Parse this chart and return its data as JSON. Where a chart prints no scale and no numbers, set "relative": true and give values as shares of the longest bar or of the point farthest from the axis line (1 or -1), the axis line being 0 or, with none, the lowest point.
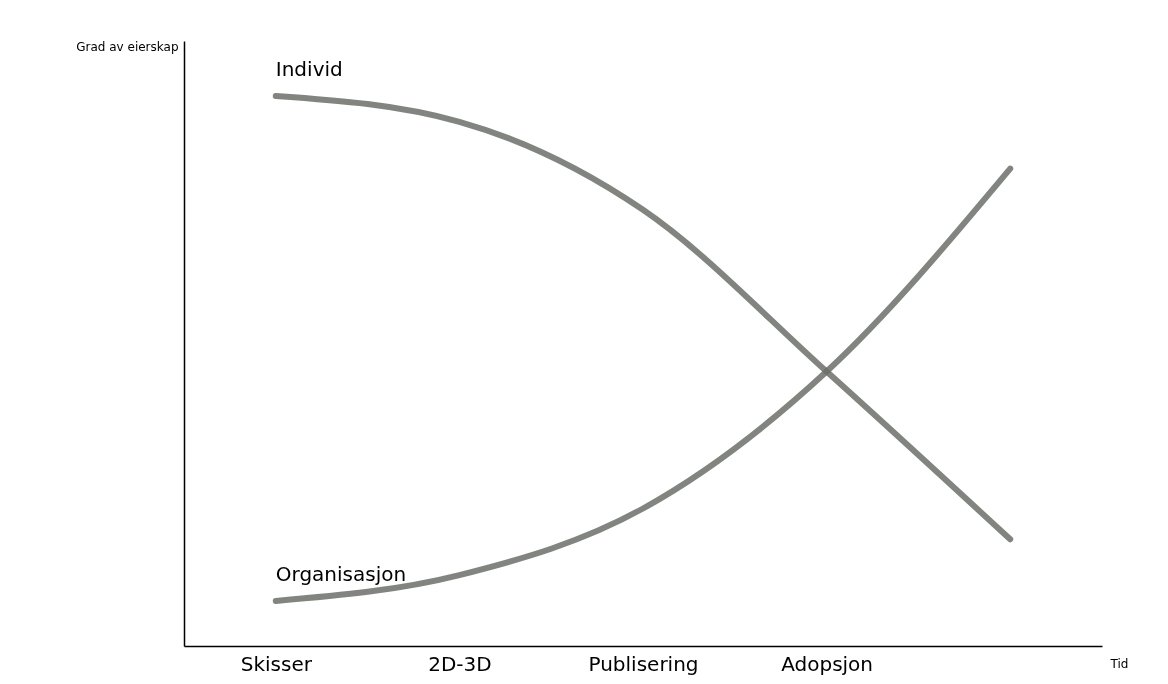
{
  "chart_data": {
    "type": "line",
    "relative": true,
    "xlabel": "Tid",
    "ylabel": "Grad av eierskap",
    "categories": [
      "Skisser",
      "2D-3D",
      "Publisering",
      "Adopsjon",
      null
    ],
    "series": [
      {
        "name": "Individ",
        "color": "#6b6e68",
        "values": [
          1.0,
          0.953,
          0.793,
          0.499,
          0.194
        ]
      },
      {
        "name": "Organisasjon",
        "color": "#6b6e68",
        "values": [
          0.082,
          0.129,
          0.25,
          0.499,
          0.868
        ]
      }
    ],
    "grid": false,
    "legend": false,
    "line_style": "solid",
    "marker": "none"
  }
}
